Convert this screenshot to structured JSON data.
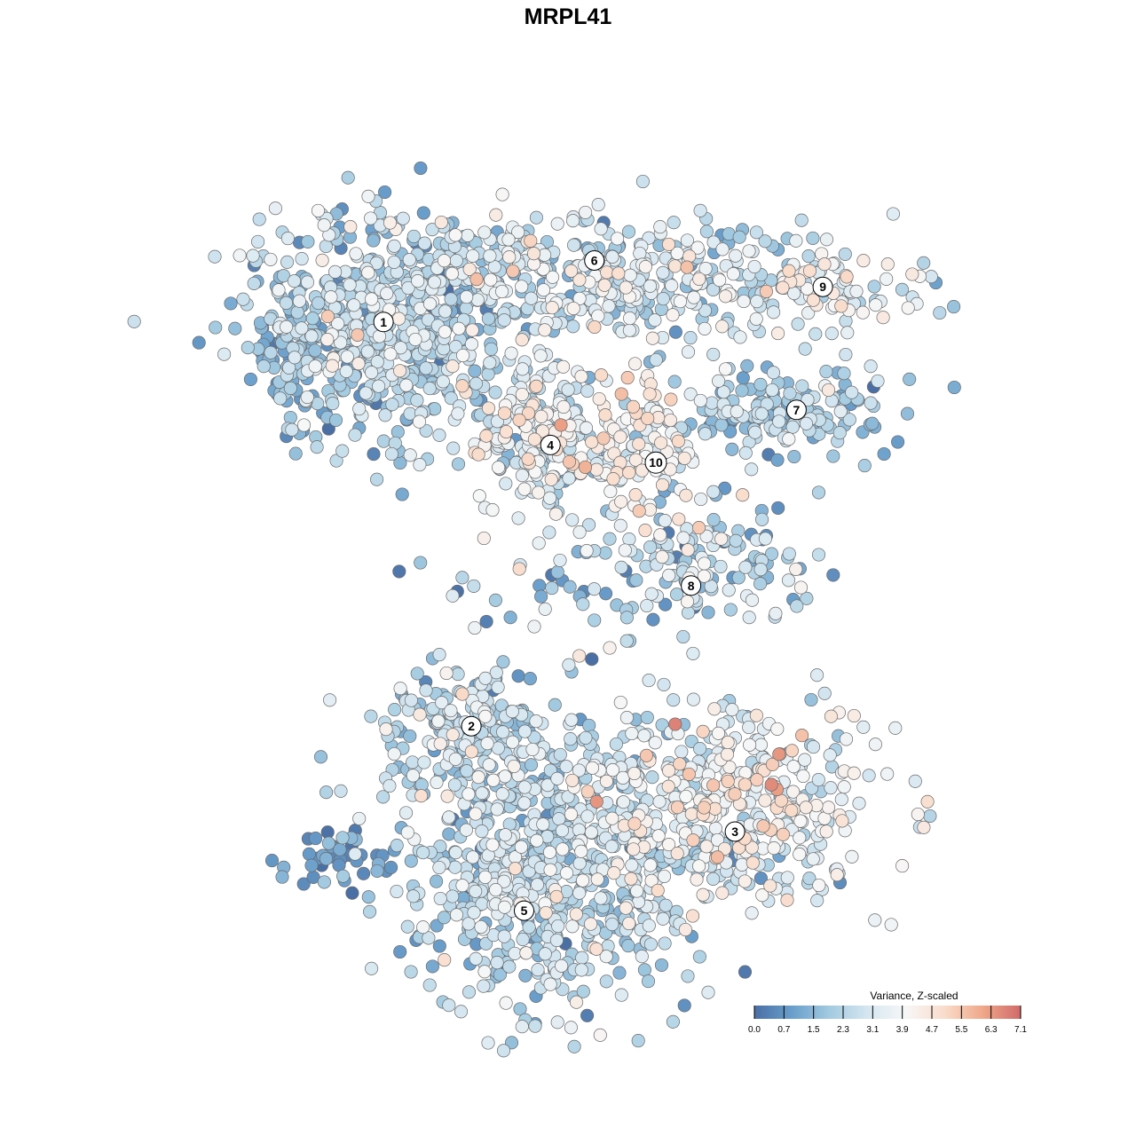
{
  "chart_data": {
    "type": "scatter",
    "title": "MRPL41",
    "xlabel": "",
    "ylabel": "",
    "grid": false,
    "axes_visible": false,
    "legend": {
      "title": "Variance, Z-scaled",
      "position": "bottom-right",
      "ticks": [
        "0.0",
        "0.7",
        "1.5",
        "2.3",
        "3.1",
        "3.9",
        "4.7",
        "5.5",
        "6.3",
        "7.1"
      ],
      "range": [
        0.0,
        7.1
      ],
      "colors": [
        "#4a6fa5",
        "#6a9fcc",
        "#a4cbe1",
        "#d6e7f1",
        "#f7f7f7",
        "#f9dccb",
        "#efa88a",
        "#d06a6a"
      ]
    },
    "x_range": [
      -50,
      50
    ],
    "y_range": [
      -50,
      50
    ],
    "clusters": [
      {
        "label": "1",
        "x": -21,
        "y": 28,
        "mean": 2.3
      },
      {
        "label": "2",
        "x": -11,
        "y": -18,
        "mean": 2.9
      },
      {
        "label": "3",
        "x": 19,
        "y": -30,
        "mean": 3.6
      },
      {
        "label": "4",
        "x": -2,
        "y": 14,
        "mean": 3.4
      },
      {
        "label": "5",
        "x": -5,
        "y": -39,
        "mean": 2.5
      },
      {
        "label": "6",
        "x": 3,
        "y": 35,
        "mean": 2.8
      },
      {
        "label": "7",
        "x": 26,
        "y": 18,
        "mean": 2.1
      },
      {
        "label": "8",
        "x": 14,
        "y": -2,
        "mean": 3.2
      },
      {
        "label": "9",
        "x": 29,
        "y": 32,
        "mean": 3.7
      },
      {
        "label": "10",
        "x": 10,
        "y": 12,
        "mean": 4.3
      }
    ],
    "point_groups": [
      {
        "cluster": "1",
        "n": 620,
        "x": -21,
        "y": 27,
        "sx": 7.5,
        "sy": 6.5,
        "mean": 2.3,
        "sd": 0.9
      },
      {
        "cluster": "1-tail",
        "n": 45,
        "x": -32,
        "y": 23,
        "sx": 2.0,
        "sy": 3.5,
        "mean": 1.3,
        "sd": 0.6
      },
      {
        "cluster": "6",
        "n": 420,
        "x": 4,
        "y": 33,
        "sx": 13.5,
        "sy": 3.5,
        "mean": 2.9,
        "sd": 1.0
      },
      {
        "cluster": "4",
        "n": 240,
        "x": -3,
        "y": 15,
        "sx": 5.0,
        "sy": 4.0,
        "mean": 3.3,
        "sd": 1.0
      },
      {
        "cluster": "9",
        "n": 85,
        "x": 28,
        "y": 32,
        "sx": 6.0,
        "sy": 2.0,
        "mean": 3.7,
        "sd": 0.8
      },
      {
        "cluster": "7",
        "n": 170,
        "x": 24,
        "y": 18,
        "sx": 7.5,
        "sy": 2.5,
        "mean": 2.1,
        "sd": 0.8
      },
      {
        "cluster": "10",
        "n": 95,
        "x": 9,
        "y": 14,
        "sx": 3.5,
        "sy": 4.0,
        "mean": 4.2,
        "sd": 0.8
      },
      {
        "cluster": "8",
        "n": 130,
        "x": 17,
        "y": 1,
        "sx": 5.5,
        "sy": 4.0,
        "mean": 2.4,
        "sd": 1.2
      },
      {
        "cluster": "2",
        "n": 170,
        "x": -12,
        "y": -18,
        "sx": 5.0,
        "sy": 3.5,
        "mean": 2.6,
        "sd": 0.9
      },
      {
        "cluster": "3",
        "n": 480,
        "x": 17,
        "y": -27,
        "sx": 9.0,
        "sy": 6.0,
        "mean": 3.5,
        "sd": 1.0
      },
      {
        "cluster": "5",
        "n": 700,
        "x": -3,
        "y": -34,
        "sx": 8.5,
        "sy": 8.0,
        "mean": 2.5,
        "sd": 0.9
      },
      {
        "cluster": "outlier-group",
        "n": 40,
        "x": -25,
        "y": -33,
        "sx": 3.0,
        "sy": 1.5,
        "mean": 0.9,
        "sd": 0.6
      },
      {
        "cluster": "scattered",
        "n": 60,
        "x": 0,
        "y": 0,
        "sx": 8.0,
        "sy": 6.0,
        "mean": 2.2,
        "sd": 1.3
      }
    ]
  }
}
